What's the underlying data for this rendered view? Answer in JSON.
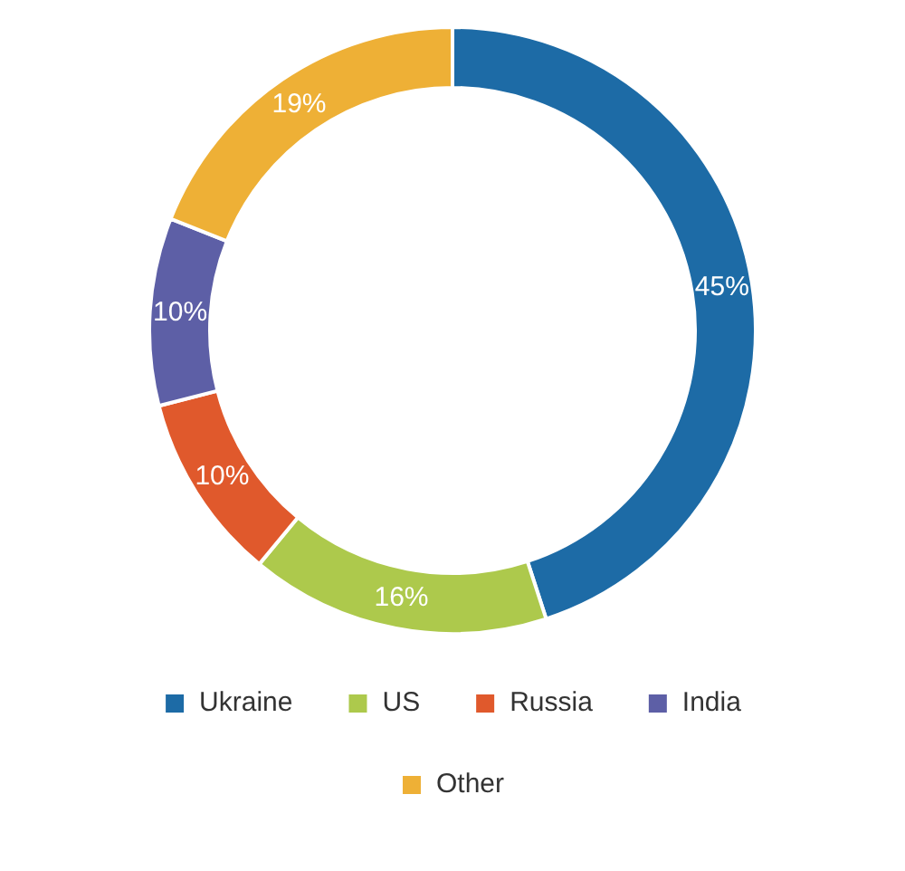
{
  "chart_data": {
    "type": "donut",
    "categories": [
      "Ukraine",
      "US",
      "Russia",
      "India",
      "Other"
    ],
    "values": [
      45,
      16,
      10,
      10,
      19
    ],
    "colors": [
      "#1d6ba6",
      "#adc94c",
      "#e0592c",
      "#5d5fa6",
      "#eeb036"
    ],
    "value_labels": [
      "45%",
      "16%",
      "10%",
      "10%",
      "19%"
    ],
    "legend": "bottom"
  }
}
